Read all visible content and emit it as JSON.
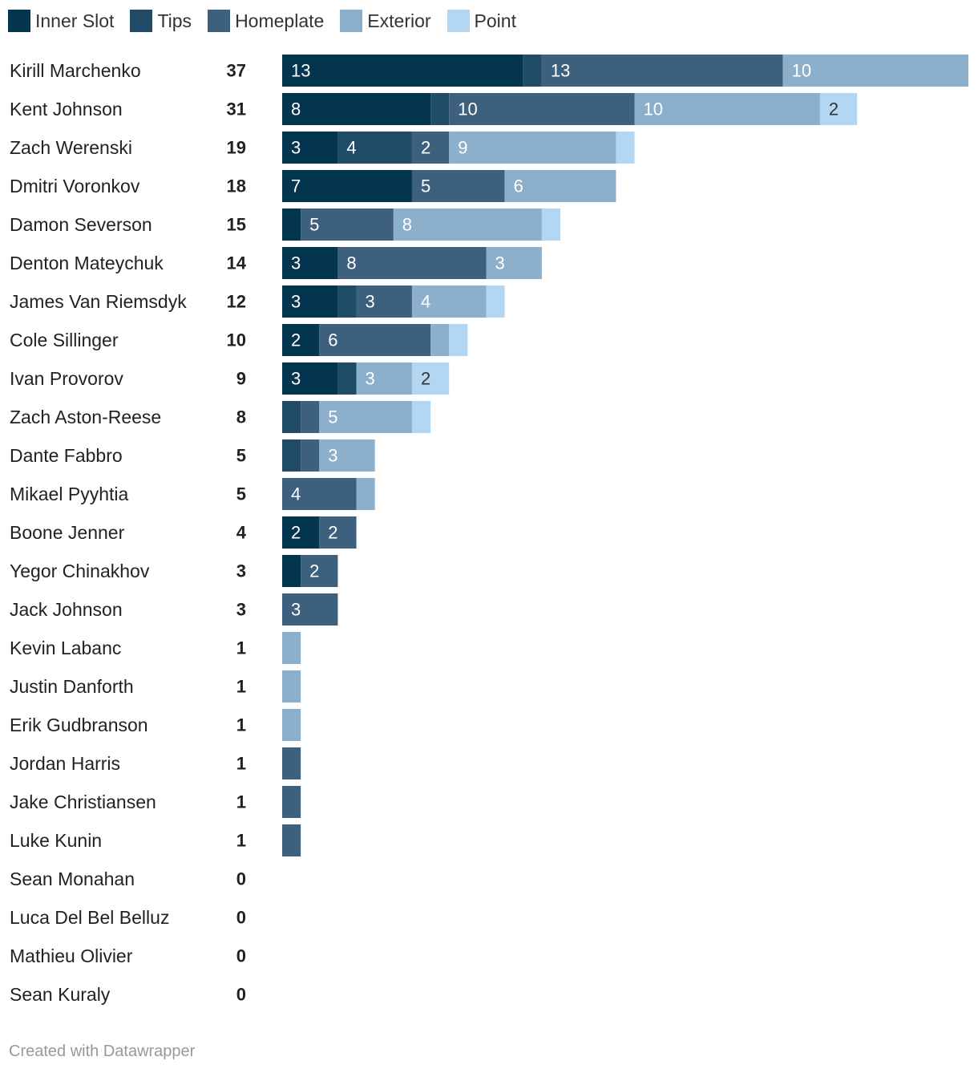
{
  "chart_data": {
    "type": "bar",
    "orientation": "horizontal",
    "stacked": true,
    "legend_position": "top-left",
    "categories": [
      "Kirill Marchenko",
      "Kent Johnson",
      "Zach Werenski",
      "Dmitri Voronkov",
      "Damon Severson",
      "Denton Mateychuk",
      "James Van Riemsdyk",
      "Cole Sillinger",
      "Ivan Provorov",
      "Zach Aston-Reese",
      "Dante Fabbro",
      "Mikael Pyyhtia",
      "Boone Jenner",
      "Yegor Chinakhov",
      "Jack Johnson",
      "Kevin Labanc",
      "Justin Danforth",
      "Erik Gudbranson",
      "Jordan Harris",
      "Jake Christiansen",
      "Luke Kunin",
      "Sean Monahan",
      "Luca Del Bel Belluz",
      "Mathieu Olivier",
      "Sean Kuraly"
    ],
    "totals": [
      37,
      31,
      19,
      18,
      15,
      14,
      12,
      10,
      9,
      8,
      5,
      5,
      4,
      3,
      3,
      1,
      1,
      1,
      1,
      1,
      1,
      0,
      0,
      0,
      0
    ],
    "series": [
      {
        "name": "Inner Slot",
        "color": "#033550",
        "values": [
          13,
          8,
          3,
          7,
          1,
          3,
          3,
          2,
          3,
          0,
          0,
          0,
          2,
          1,
          0,
          0,
          0,
          0,
          0,
          0,
          0,
          0,
          0,
          0,
          0
        ]
      },
      {
        "name": "Tips",
        "color": "#214c69",
        "values": [
          1,
          1,
          4,
          0,
          0,
          0,
          1,
          0,
          1,
          1,
          1,
          0,
          0,
          0,
          0,
          0,
          0,
          0,
          0,
          0,
          0,
          0,
          0,
          0,
          0
        ]
      },
      {
        "name": "Homeplate",
        "color": "#3e607f",
        "values": [
          13,
          10,
          2,
          5,
          5,
          8,
          3,
          6,
          0,
          1,
          1,
          4,
          2,
          2,
          3,
          0,
          0,
          0,
          1,
          1,
          1,
          0,
          0,
          0,
          0
        ]
      },
      {
        "name": "Exterior",
        "color": "#8cafcc",
        "values": [
          10,
          10,
          9,
          6,
          8,
          3,
          4,
          1,
          3,
          5,
          3,
          1,
          0,
          0,
          0,
          1,
          1,
          1,
          0,
          0,
          0,
          0,
          0,
          0,
          0
        ]
      },
      {
        "name": "Point",
        "color": "#b3d7f3",
        "values": [
          0,
          2,
          1,
          0,
          1,
          0,
          1,
          1,
          2,
          1,
          0,
          0,
          0,
          0,
          0,
          0,
          0,
          0,
          0,
          0,
          0,
          0,
          0,
          0,
          0
        ]
      }
    ],
    "xlim": [
      0,
      37
    ],
    "grid": false
  },
  "footer": {
    "credit": "Created with Datawrapper"
  }
}
